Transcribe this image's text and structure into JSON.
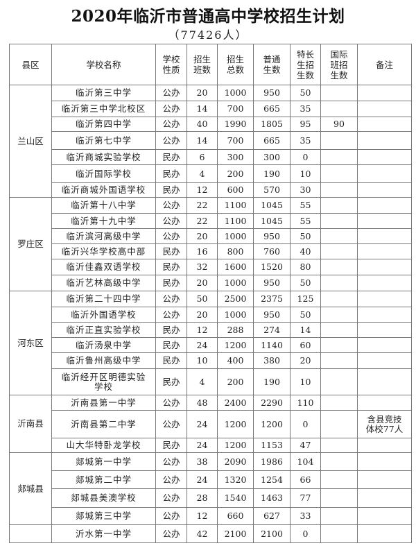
{
  "title": "2020年临沂市普通高中学校招生计划",
  "subtitle": "（77426人）",
  "headers": [
    "县区",
    "学校名称",
    "学校性质",
    "招生班数",
    "招生总数",
    "普通生数",
    "特长生招生数",
    "国际班招生数",
    "备注"
  ],
  "districts": [
    {
      "name": "兰山区",
      "schools": [
        {
          "name": "临沂第三中学",
          "type": "公办",
          "classes": "20",
          "total": "1000",
          "general": "950",
          "special": "50",
          "intl": "",
          "note": ""
        },
        {
          "name": "临沂第三中学北校区",
          "type": "公办",
          "classes": "14",
          "total": "700",
          "general": "665",
          "special": "35",
          "intl": "",
          "note": ""
        },
        {
          "name": "临沂第四中学",
          "type": "公办",
          "classes": "40",
          "total": "1990",
          "general": "1805",
          "special": "95",
          "intl": "90",
          "note": ""
        },
        {
          "name": "临沂第七中学",
          "type": "公办",
          "classes": "14",
          "total": "700",
          "general": "665",
          "special": "35",
          "intl": "",
          "note": ""
        },
        {
          "name": "临沂商城实验学校",
          "type": "民办",
          "classes": "6",
          "total": "300",
          "general": "300",
          "special": "0",
          "intl": "",
          "note": ""
        },
        {
          "name": "临沂国际学校",
          "type": "民办",
          "classes": "4",
          "total": "200",
          "general": "190",
          "special": "10",
          "intl": "",
          "note": ""
        },
        {
          "name": "临沂商城外国语学校",
          "type": "民办",
          "classes": "12",
          "total": "600",
          "general": "570",
          "special": "30",
          "intl": "",
          "note": ""
        }
      ]
    },
    {
      "name": "罗庄区",
      "schools": [
        {
          "name": "临沂第十八中学",
          "type": "公办",
          "classes": "22",
          "total": "1100",
          "general": "1045",
          "special": "55",
          "intl": "",
          "note": ""
        },
        {
          "name": "临沂第十九中学",
          "type": "公办",
          "classes": "22",
          "total": "1100",
          "general": "1045",
          "special": "55",
          "intl": "",
          "note": ""
        },
        {
          "name": "临沂滨河高级中学",
          "type": "公办",
          "classes": "20",
          "total": "1000",
          "general": "950",
          "special": "50",
          "intl": "",
          "note": ""
        },
        {
          "name": "临沂兴华学校高中部",
          "type": "民办",
          "classes": "16",
          "total": "800",
          "general": "760",
          "special": "40",
          "intl": "",
          "note": ""
        },
        {
          "name": "临沂佳鑫双语学校",
          "type": "民办",
          "classes": "32",
          "total": "1600",
          "general": "1520",
          "special": "80",
          "intl": "",
          "note": ""
        },
        {
          "name": "临沂艺林高级中学",
          "type": "民办",
          "classes": "20",
          "total": "1000",
          "general": "950",
          "special": "50",
          "intl": "",
          "note": ""
        }
      ]
    },
    {
      "name": "河东区",
      "schools": [
        {
          "name": "临沂第二十四中学",
          "type": "公办",
          "classes": "50",
          "total": "2500",
          "general": "2375",
          "special": "125",
          "intl": "",
          "note": ""
        },
        {
          "name": "临沂外国语学校",
          "type": "公办",
          "classes": "20",
          "total": "1000",
          "general": "950",
          "special": "50",
          "intl": "",
          "note": ""
        },
        {
          "name": "临沂正直实验学校",
          "type": "民办",
          "classes": "12",
          "total": "288",
          "general": "274",
          "special": "14",
          "intl": "",
          "note": ""
        },
        {
          "name": "临沂汤泉中学",
          "type": "民办",
          "classes": "24",
          "total": "1200",
          "general": "1140",
          "special": "60",
          "intl": "",
          "note": ""
        },
        {
          "name": "临沂鲁州高级中学",
          "type": "民办",
          "classes": "10",
          "total": "400",
          "general": "380",
          "special": "20",
          "intl": "",
          "note": ""
        },
        {
          "name": "临沂经开区明德实验学校",
          "type": "民办",
          "classes": "4",
          "total": "200",
          "general": "190",
          "special": "10",
          "intl": "",
          "note": ""
        }
      ]
    },
    {
      "name": "沂南县",
      "schools": [
        {
          "name": "沂南县第一中学",
          "type": "公办",
          "classes": "48",
          "total": "2400",
          "general": "2290",
          "special": "110",
          "intl": "",
          "note": ""
        },
        {
          "name": "沂南县第二中学",
          "type": "公办",
          "classes": "24",
          "total": "1200",
          "general": "1200",
          "special": "0",
          "intl": "",
          "note": "含县竞技体校77人"
        },
        {
          "name": "山大华特卧龙学校",
          "type": "民办",
          "classes": "24",
          "total": "1200",
          "general": "1153",
          "special": "47",
          "intl": "",
          "note": ""
        }
      ]
    },
    {
      "name": "郯城县",
      "schools": [
        {
          "name": "郯城第一中学",
          "type": "公办",
          "classes": "38",
          "total": "2090",
          "general": "1986",
          "special": "104",
          "intl": "",
          "note": ""
        },
        {
          "name": "郯城第二中学",
          "type": "公办",
          "classes": "24",
          "total": "1320",
          "general": "1254",
          "special": "66",
          "intl": "",
          "note": ""
        },
        {
          "name": "郯城县美澳学校",
          "type": "公办",
          "classes": "28",
          "total": "1540",
          "general": "1463",
          "special": "77",
          "intl": "",
          "note": ""
        },
        {
          "name": "郯城第三中学",
          "type": "公办",
          "classes": "12",
          "total": "660",
          "general": "627",
          "special": "33",
          "intl": "",
          "note": ""
        }
      ]
    },
    {
      "name": "",
      "schools": [
        {
          "name": "沂水第一中学",
          "type": "公办",
          "classes": "42",
          "total": "2100",
          "general": "2100",
          "special": "0",
          "intl": "",
          "note": ""
        }
      ]
    }
  ]
}
